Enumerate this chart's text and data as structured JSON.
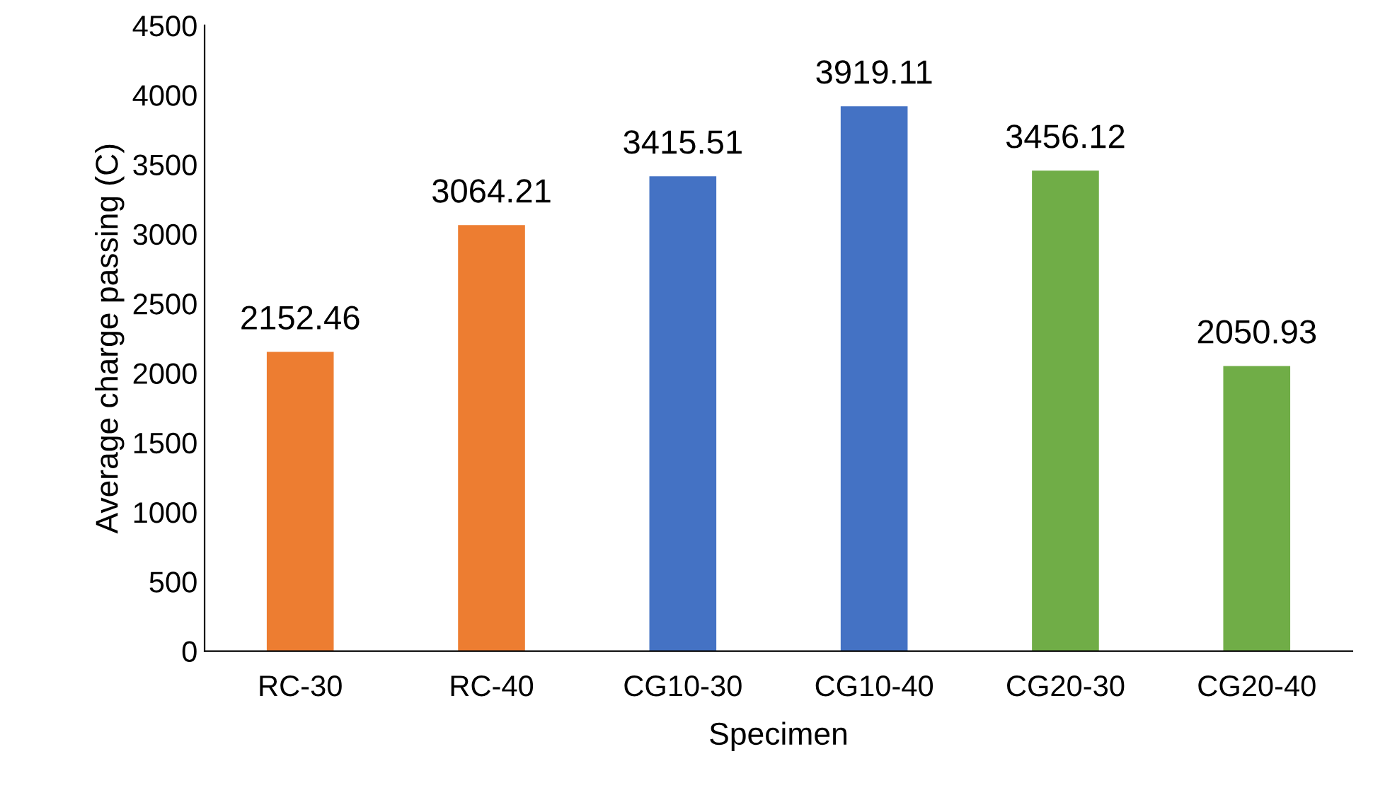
{
  "chart_data": {
    "type": "bar",
    "xlabel": "Specimen",
    "ylabel": "Average charge passing (C)",
    "categories": [
      "RC-30",
      "RC-40",
      "CG10-30",
      "CG10-40",
      "CG20-30",
      "CG20-40"
    ],
    "values": [
      2152.46,
      3064.21,
      3415.51,
      3919.11,
      3456.12,
      2050.93
    ],
    "colors": [
      "#ed7d31",
      "#ed7d31",
      "#4472c4",
      "#4472c4",
      "#70ad47",
      "#70ad47"
    ],
    "ylim": [
      0,
      4500
    ],
    "yticks": [
      0,
      500,
      1000,
      1500,
      2000,
      2500,
      3000,
      3500,
      4000,
      4500
    ],
    "data_labels": true,
    "grid": false,
    "legend": false
  }
}
